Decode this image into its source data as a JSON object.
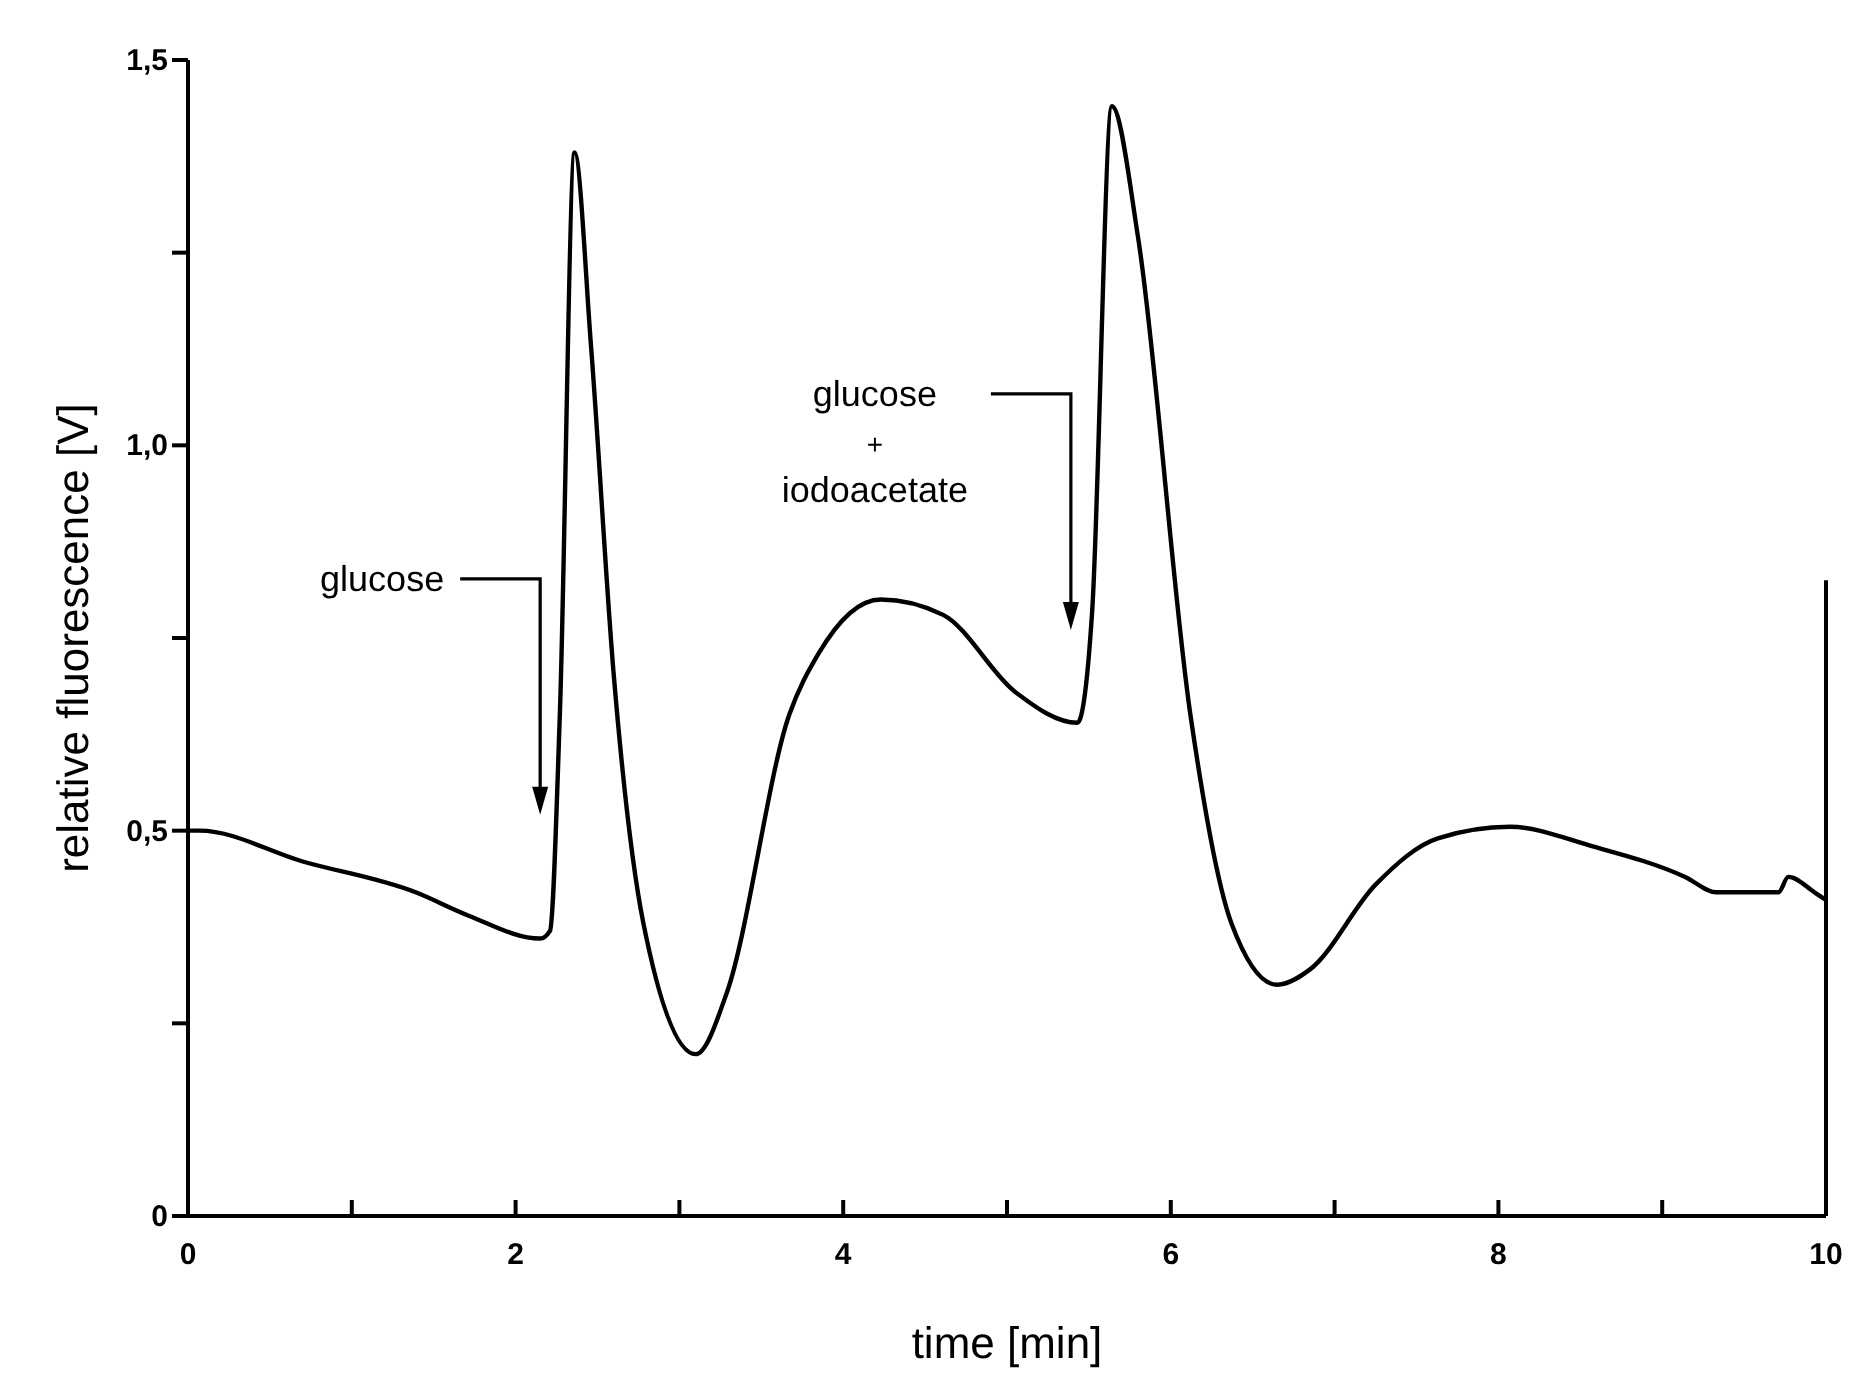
{
  "chart_data": {
    "type": "line",
    "xlabel": "time  [min]",
    "ylabel": "relative fluorescence  [V]",
    "xlim": [
      0,
      10
    ],
    "ylim": [
      0,
      1.5
    ],
    "xticks": [
      0,
      {
        "value": 1,
        "label": null
      },
      2,
      {
        "value": 3,
        "label": null
      },
      4,
      {
        "value": 5,
        "label": null
      },
      6,
      {
        "value": 7,
        "label": null
      },
      8,
      {
        "value": 9,
        "label": null
      },
      {
        "value": 10,
        "label": "10"
      }
    ],
    "yticks": [
      0,
      {
        "value": 0.25,
        "label": null
      },
      {
        "value": 0.5,
        "label": "0,5"
      },
      {
        "value": 0.75,
        "label": null
      },
      {
        "value": 1,
        "label": "1,0"
      },
      {
        "value": 1.25,
        "label": null
      },
      {
        "value": 1.5,
        "label": "1,5"
      }
    ],
    "grid": false,
    "marker": "none",
    "line_style": "solid",
    "x": [
      0,
      0.07,
      0.7,
      1.39,
      1.71,
      2.15,
      2.21,
      2.27,
      2.36,
      2.46,
      2.6,
      2.78,
      3.1,
      3.29,
      3.67,
      3.85,
      4.23,
      4.61,
      5.05,
      5.43,
      5.52,
      5.64,
      5.8,
      6.12,
      6.37,
      6.65,
      6.85,
      7.25,
      7.63,
      8.07,
      8.57,
      9.14,
      9.33,
      9.71,
      9.77,
      9.93,
      10
    ],
    "series": [
      {
        "color": "#000000",
        "values": [
          0.5,
          0.5,
          0.46,
          0.42,
          0.39,
          0.36,
          0.37,
          0.65,
          1.38,
          1.13,
          0.7,
          0.38,
          0.21,
          0.29,
          0.65,
          0.73,
          0.8,
          0.78,
          0.68,
          0.64,
          0.785,
          1.44,
          1.27,
          0.65,
          0.38,
          0.3,
          0.32,
          0.43,
          0.49,
          0.505,
          0.48,
          0.44,
          0.42,
          0.42,
          0.44,
          0.42,
          0.41
        ]
      }
    ],
    "annotations": [
      "glucose",
      "glucose\n+\niodoacetate"
    ]
  }
}
